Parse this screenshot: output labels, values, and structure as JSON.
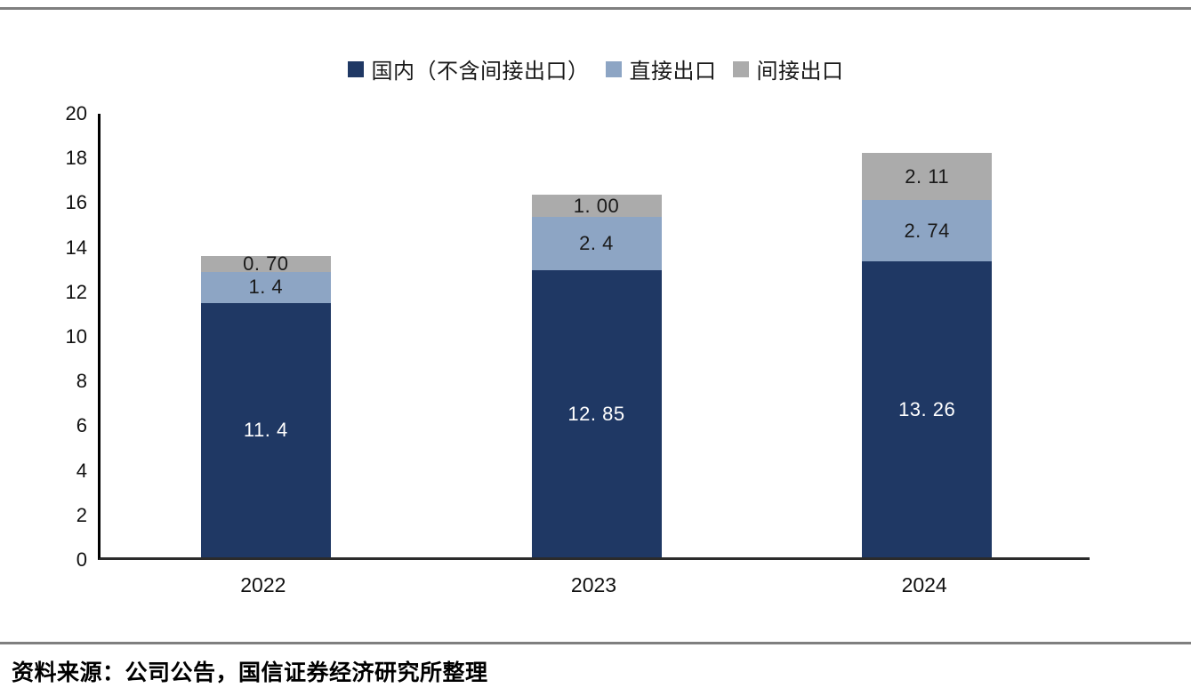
{
  "chart_data": {
    "type": "bar",
    "stacked": true,
    "title": "",
    "xlabel": "",
    "ylabel": "",
    "categories": [
      "2022",
      "2023",
      "2024"
    ],
    "series": [
      {
        "name": "国内（不含间接出口）",
        "color": "#1F3864",
        "label_color": "#FFFFFF",
        "values": [
          11.4,
          12.85,
          13.26
        ],
        "labels": [
          "11. 4",
          "12. 85",
          "13. 26"
        ]
      },
      {
        "name": "直接出口",
        "color": "#8DA5C4",
        "label_color": "#1A1A1A",
        "values": [
          1.4,
          2.4,
          2.74
        ],
        "labels": [
          "1. 4",
          "2. 4",
          "2. 74"
        ]
      },
      {
        "name": "间接出口",
        "color": "#ABABAB",
        "label_color": "#1A1A1A",
        "values": [
          0.7,
          1.0,
          2.11
        ],
        "labels": [
          "0. 70",
          "1. 00",
          "2. 11"
        ]
      }
    ],
    "ylim": [
      0,
      20
    ],
    "yticks": [
      0,
      2,
      4,
      6,
      8,
      10,
      12,
      14,
      16,
      18,
      20
    ],
    "grid": false,
    "legend_position": "top-center"
  },
  "source": {
    "text": "资料来源：公司公告，国信证券经济研究所整理"
  }
}
